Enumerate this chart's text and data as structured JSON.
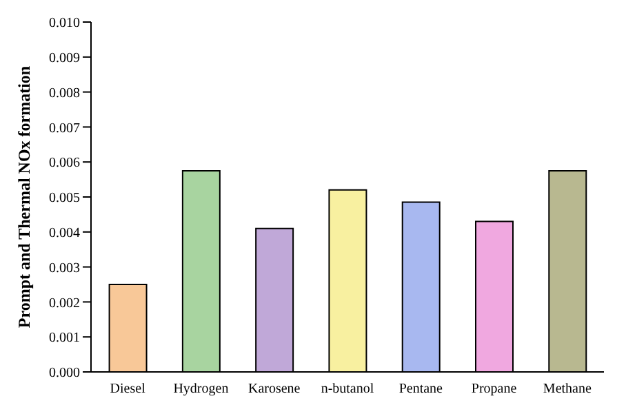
{
  "chart_data": {
    "type": "bar",
    "ylabel": "Prompt and Thermal NOx formation",
    "categories": [
      "Diesel",
      "Hydrogen",
      "Karosene",
      "n-butanol",
      "Pentane",
      "Propane",
      "Methane"
    ],
    "values": [
      0.0025,
      0.00575,
      0.0041,
      0.0052,
      0.00485,
      0.0043,
      0.00575
    ],
    "colors": [
      "#f8c898",
      "#a8d4a0",
      "#c0a8d8",
      "#f8f0a0",
      "#a8b8f0",
      "#f0a8e0",
      "#b8b890"
    ],
    "ylim": [
      0,
      0.01
    ],
    "yticks": [
      {
        "value": 0,
        "label": "0.000"
      },
      {
        "value": 0.001,
        "label": "0.001"
      },
      {
        "value": 0.002,
        "label": "0.002"
      },
      {
        "value": 0.003,
        "label": "0.003"
      },
      {
        "value": 0.004,
        "label": "0.004"
      },
      {
        "value": 0.005,
        "label": "0.005"
      },
      {
        "value": 0.006,
        "label": "0.006"
      },
      {
        "value": 0.007,
        "label": "0.007"
      },
      {
        "value": 0.008,
        "label": "0.008"
      },
      {
        "value": 0.009,
        "label": "0.009"
      },
      {
        "value": 0.01,
        "label": "0.010"
      }
    ],
    "grid": false
  }
}
